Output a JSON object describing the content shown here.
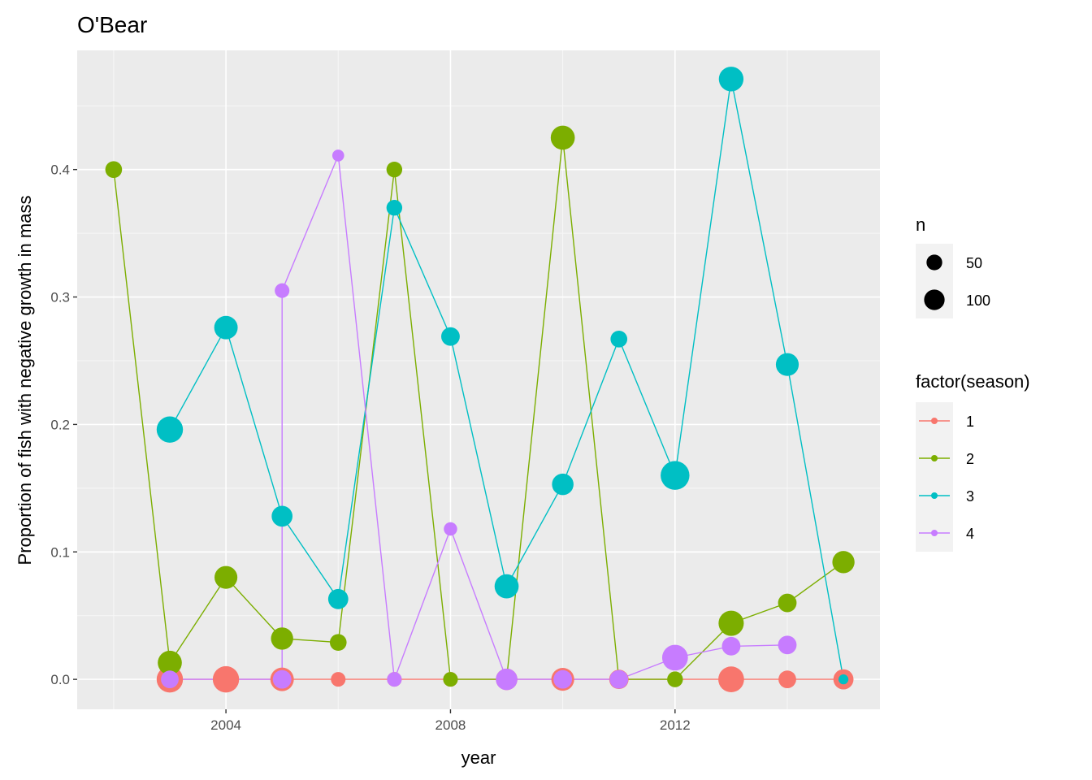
{
  "chart_data": {
    "type": "line",
    "title": "O'Bear",
    "xlabel": "year",
    "ylabel": "Proportion of fish with negative growth in mass",
    "xlim": [
      2001.35,
      2015.65
    ],
    "ylim": [
      -0.0235,
      0.4935
    ],
    "x_ticks": [
      2004,
      2008,
      2012
    ],
    "x_tick_labels": [
      "2004",
      "2008",
      "2012"
    ],
    "y_ticks": [
      0,
      0.1,
      0.2,
      0.3,
      0.4
    ],
    "y_tick_labels": [
      "0.0",
      "0.1",
      "0.2",
      "0.3",
      "0.4"
    ],
    "grid": true,
    "legend_position": "right",
    "size_legend": {
      "title": "n",
      "entries": [
        {
          "label": "50",
          "n": 50
        },
        {
          "label": "100",
          "n": 100
        }
      ]
    },
    "color_legend": {
      "title": "factor(season)",
      "entries": [
        "1",
        "2",
        "3",
        "4"
      ]
    },
    "series": [
      {
        "name": "1",
        "color": "#F8766D",
        "points": [
          {
            "x": 2003,
            "y": 0,
            "n": 100
          },
          {
            "x": 2004,
            "y": 0,
            "n": 100
          },
          {
            "x": 2005,
            "y": 0,
            "n": 75
          },
          {
            "x": 2006,
            "y": 0,
            "n": 20
          },
          {
            "x": 2007,
            "y": 0,
            "n": 20
          },
          {
            "x": 2008,
            "y": 0,
            "n": 20
          },
          {
            "x": 2009,
            "y": 0,
            "n": 60
          },
          {
            "x": 2010,
            "y": 0,
            "n": 70
          },
          {
            "x": 2011,
            "y": 0,
            "n": 45
          },
          {
            "x": 2012,
            "y": 0,
            "n": 20
          },
          {
            "x": 2013,
            "y": 0,
            "n": 95
          },
          {
            "x": 2014,
            "y": 0,
            "n": 35
          },
          {
            "x": 2015,
            "y": 0,
            "n": 50
          }
        ]
      },
      {
        "name": "2",
        "color": "#7CAE00",
        "points": [
          {
            "x": 2002,
            "y": 0.4,
            "n": 30
          },
          {
            "x": 2003,
            "y": 0.013,
            "n": 80
          },
          {
            "x": 2004,
            "y": 0.08,
            "n": 70
          },
          {
            "x": 2005,
            "y": 0.032,
            "n": 65
          },
          {
            "x": 2006,
            "y": 0.029,
            "n": 30
          },
          {
            "x": 2007,
            "y": 0.4,
            "n": 25
          },
          {
            "x": 2008,
            "y": 0,
            "n": 20
          },
          {
            "x": 2009,
            "y": 0,
            "n": 20
          },
          {
            "x": 2010,
            "y": 0.425,
            "n": 80
          },
          {
            "x": 2011,
            "y": 0,
            "n": 25
          },
          {
            "x": 2012,
            "y": 0,
            "n": 25
          },
          {
            "x": 2013,
            "y": 0.044,
            "n": 90
          },
          {
            "x": 2014,
            "y": 0.06,
            "n": 40
          },
          {
            "x": 2015,
            "y": 0.092,
            "n": 65
          }
        ]
      },
      {
        "name": "3",
        "color": "#00BFC4",
        "points": [
          {
            "x": 2003,
            "y": 0.196,
            "n": 100
          },
          {
            "x": 2004,
            "y": 0.276,
            "n": 75
          },
          {
            "x": 2005,
            "y": 0.128,
            "n": 55
          },
          {
            "x": 2006,
            "y": 0.063,
            "n": 50
          },
          {
            "x": 2007,
            "y": 0.37,
            "n": 25
          },
          {
            "x": 2008,
            "y": 0.269,
            "n": 40
          },
          {
            "x": 2009,
            "y": 0.073,
            "n": 80
          },
          {
            "x": 2010,
            "y": 0.153,
            "n": 60
          },
          {
            "x": 2011,
            "y": 0.267,
            "n": 30
          },
          {
            "x": 2012,
            "y": 0.16,
            "n": 125
          },
          {
            "x": 2013,
            "y": 0.471,
            "n": 85
          },
          {
            "x": 2014,
            "y": 0.247,
            "n": 70
          },
          {
            "x": 2015,
            "y": 0,
            "n": 5
          }
        ]
      },
      {
        "name": "4",
        "color": "#C77CFF",
        "points": [
          {
            "x": 2003,
            "y": 0,
            "n": 35
          },
          {
            "x": 2005,
            "y": 0,
            "n": 40
          },
          {
            "x": 2005,
            "y": 0.305,
            "n": 20
          },
          {
            "x": 2006,
            "y": 0.411,
            "n": 10
          },
          {
            "x": 2007,
            "y": 0,
            "n": 20
          },
          {
            "x": 2008,
            "y": 0.118,
            "n": 15
          },
          {
            "x": 2009,
            "y": 0,
            "n": 60
          },
          {
            "x": 2010,
            "y": 0,
            "n": 40
          },
          {
            "x": 2011,
            "y": 0,
            "n": 40
          },
          {
            "x": 2012,
            "y": 0.017,
            "n": 95
          },
          {
            "x": 2013,
            "y": 0.026,
            "n": 40
          },
          {
            "x": 2014,
            "y": 0.027,
            "n": 40
          }
        ]
      }
    ]
  }
}
